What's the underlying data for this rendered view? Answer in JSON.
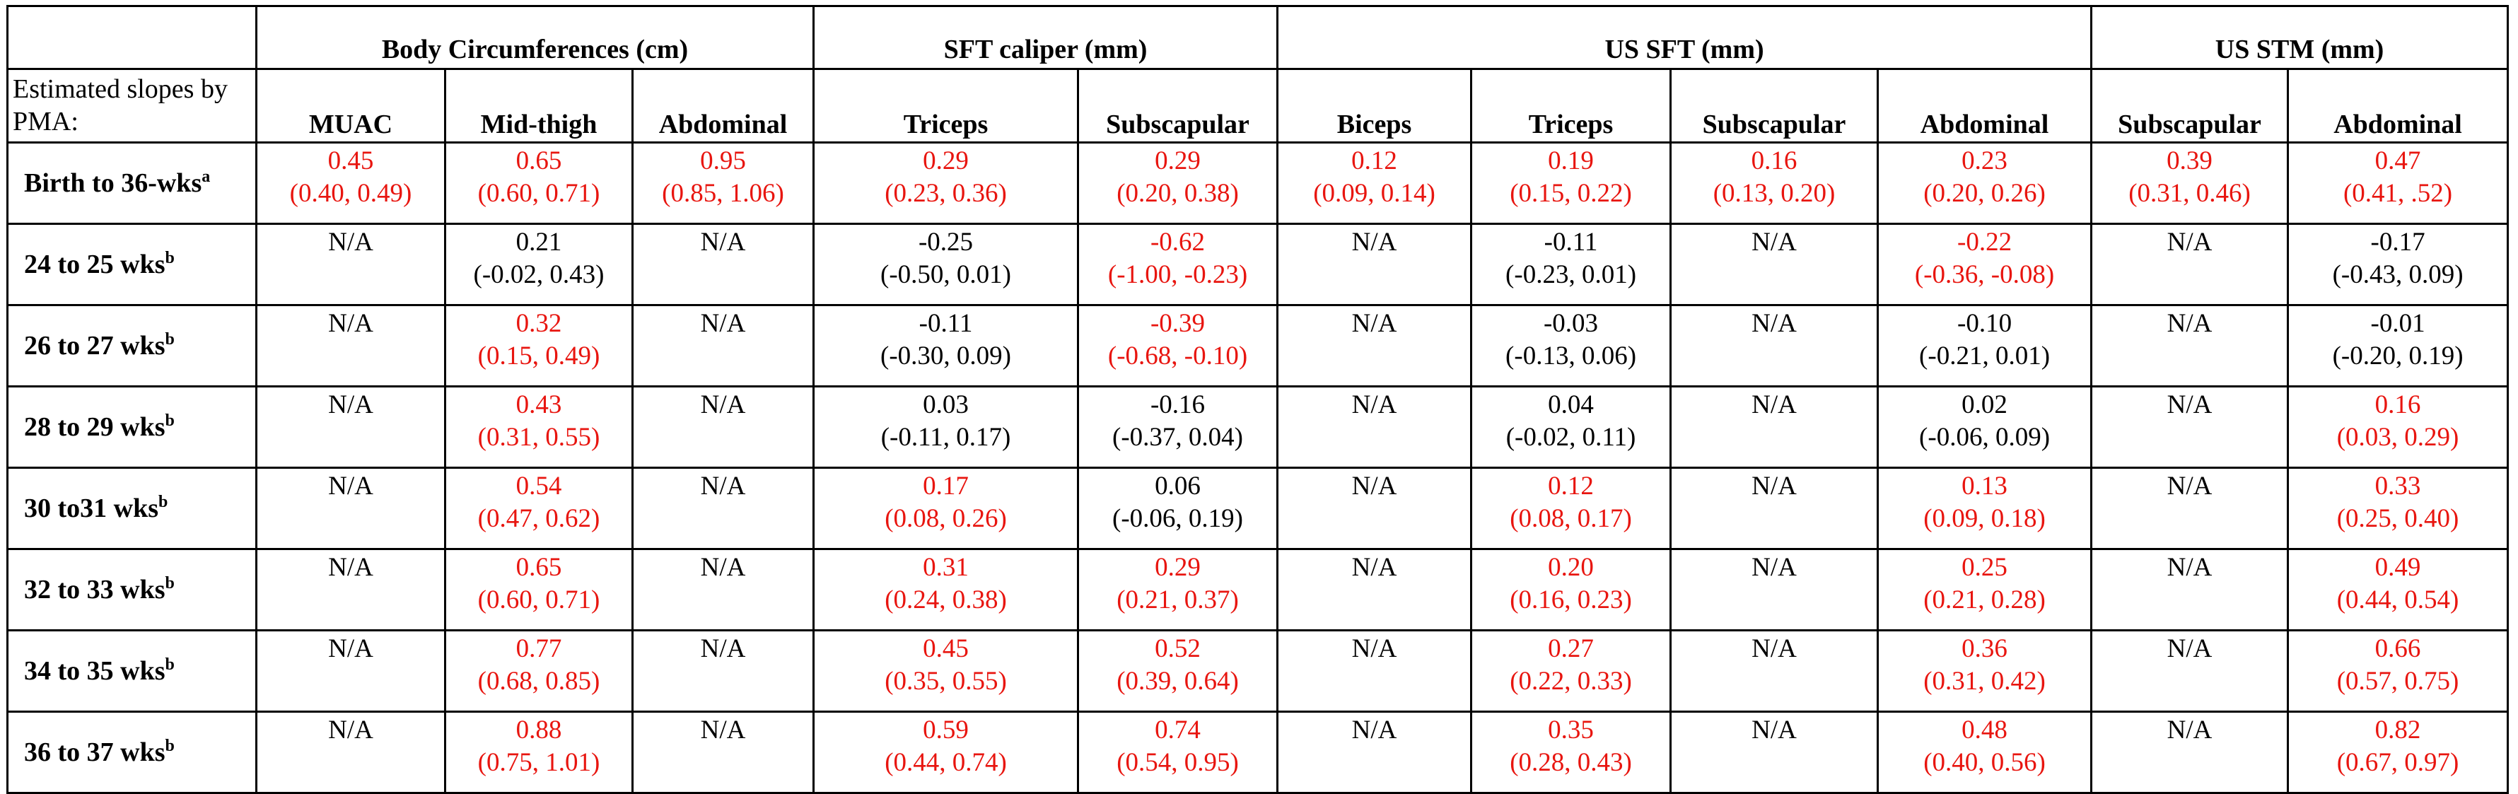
{
  "colors": {
    "significant": "#e8150f",
    "default": "#000000",
    "border": "#000000"
  },
  "table": {
    "corner_label": "Estimated slopes by PMA:",
    "groups": [
      {
        "label": "Body Circumferences (cm)",
        "span": 3
      },
      {
        "label": "SFT caliper (mm)",
        "span": 2
      },
      {
        "label": "US SFT (mm)",
        "span": 4
      },
      {
        "label": "US STM (mm)",
        "span": 2
      }
    ],
    "columns": [
      "MUAC",
      "Mid-thigh",
      "Abdominal",
      "Triceps",
      "Subscapular",
      "Biceps",
      "Triceps",
      "Subscapular",
      "Abdominal",
      "Subscapular",
      "Abdominal"
    ],
    "rows": [
      {
        "label": "Birth to 36-wks",
        "sup": "a",
        "cells": [
          {
            "est": "0.45",
            "ci": "(0.40, 0.49)",
            "sig": true
          },
          {
            "est": "0.65",
            "ci": "(0.60, 0.71)",
            "sig": true
          },
          {
            "est": "0.95",
            "ci": "(0.85, 1.06)",
            "sig": true
          },
          {
            "est": "0.29",
            "ci": "(0.23, 0.36)",
            "sig": true
          },
          {
            "est": "0.29",
            "ci": "(0.20, 0.38)",
            "sig": true
          },
          {
            "est": "0.12",
            "ci": "(0.09, 0.14)",
            "sig": true
          },
          {
            "est": "0.19",
            "ci": "(0.15, 0.22)",
            "sig": true
          },
          {
            "est": "0.16",
            "ci": "(0.13, 0.20)",
            "sig": true
          },
          {
            "est": "0.23",
            "ci": "(0.20, 0.26)",
            "sig": true
          },
          {
            "est": "0.39",
            "ci": "(0.31, 0.46)",
            "sig": true
          },
          {
            "est": "0.47",
            "ci": "(0.41, .52)",
            "sig": true
          }
        ]
      },
      {
        "label": "24 to 25 wks",
        "sup": "b",
        "cells": [
          {
            "est": "N/A",
            "ci": "",
            "sig": false
          },
          {
            "est": "0.21",
            "ci": "(-0.02, 0.43)",
            "sig": false
          },
          {
            "est": "N/A",
            "ci": "",
            "sig": false
          },
          {
            "est": "-0.25",
            "ci": "(-0.50, 0.01)",
            "sig": false
          },
          {
            "est": "-0.62",
            "ci": "(-1.00, -0.23)",
            "sig": true
          },
          {
            "est": "N/A",
            "ci": "",
            "sig": false
          },
          {
            "est": "-0.11",
            "ci": "(-0.23, 0.01)",
            "sig": false
          },
          {
            "est": "N/A",
            "ci": "",
            "sig": false
          },
          {
            "est": "-0.22",
            "ci": "(-0.36, -0.08)",
            "sig": true
          },
          {
            "est": "N/A",
            "ci": "",
            "sig": false
          },
          {
            "est": "-0.17",
            "ci": "(-0.43, 0.09)",
            "sig": false
          }
        ]
      },
      {
        "label": "26 to 27 wks",
        "sup": "b",
        "cells": [
          {
            "est": "N/A",
            "ci": "",
            "sig": false
          },
          {
            "est": "0.32",
            "ci": "(0.15, 0.49)",
            "sig": true
          },
          {
            "est": "N/A",
            "ci": "",
            "sig": false
          },
          {
            "est": "-0.11",
            "ci": "(-0.30, 0.09)",
            "sig": false
          },
          {
            "est": "-0.39",
            "ci": "(-0.68, -0.10)",
            "sig": true
          },
          {
            "est": "N/A",
            "ci": "",
            "sig": false
          },
          {
            "est": "-0.03",
            "ci": "(-0.13, 0.06)",
            "sig": false
          },
          {
            "est": "N/A",
            "ci": "",
            "sig": false
          },
          {
            "est": "-0.10",
            "ci": "(-0.21, 0.01)",
            "sig": false
          },
          {
            "est": "N/A",
            "ci": "",
            "sig": false
          },
          {
            "est": "-0.01",
            "ci": "(-0.20, 0.19)",
            "sig": false
          }
        ]
      },
      {
        "label": "28 to 29 wks",
        "sup": "b",
        "cells": [
          {
            "est": "N/A",
            "ci": "",
            "sig": false
          },
          {
            "est": "0.43",
            "ci": "(0.31, 0.55)",
            "sig": true
          },
          {
            "est": "N/A",
            "ci": "",
            "sig": false
          },
          {
            "est": "0.03",
            "ci": "(-0.11, 0.17)",
            "sig": false
          },
          {
            "est": "-0.16",
            "ci": "(-0.37, 0.04)",
            "sig": false
          },
          {
            "est": "N/A",
            "ci": "",
            "sig": false
          },
          {
            "est": "0.04",
            "ci": "(-0.02, 0.11)",
            "sig": false
          },
          {
            "est": "N/A",
            "ci": "",
            "sig": false
          },
          {
            "est": "0.02",
            "ci": "(-0.06, 0.09)",
            "sig": false
          },
          {
            "est": "N/A",
            "ci": "",
            "sig": false
          },
          {
            "est": "0.16",
            "ci": "(0.03, 0.29)",
            "sig": true
          }
        ]
      },
      {
        "label": "30 to31 wks",
        "sup": "b",
        "cells": [
          {
            "est": "N/A",
            "ci": "",
            "sig": false
          },
          {
            "est": "0.54",
            "ci": "(0.47, 0.62)",
            "sig": true
          },
          {
            "est": "N/A",
            "ci": "",
            "sig": false
          },
          {
            "est": "0.17",
            "ci": "(0.08, 0.26)",
            "sig": true
          },
          {
            "est": "0.06",
            "ci": "(-0.06, 0.19)",
            "sig": false
          },
          {
            "est": "N/A",
            "ci": "",
            "sig": false
          },
          {
            "est": "0.12",
            "ci": "(0.08, 0.17)",
            "sig": true
          },
          {
            "est": "N/A",
            "ci": "",
            "sig": false
          },
          {
            "est": "0.13",
            "ci": "(0.09, 0.18)",
            "sig": true
          },
          {
            "est": "N/A",
            "ci": "",
            "sig": false
          },
          {
            "est": "0.33",
            "ci": "(0.25, 0.40)",
            "sig": true
          }
        ]
      },
      {
        "label": "32 to 33 wks",
        "sup": "b",
        "cells": [
          {
            "est": "N/A",
            "ci": "",
            "sig": false
          },
          {
            "est": "0.65",
            "ci": "(0.60, 0.71)",
            "sig": true
          },
          {
            "est": "N/A",
            "ci": "",
            "sig": false
          },
          {
            "est": "0.31",
            "ci": "(0.24, 0.38)",
            "sig": true
          },
          {
            "est": "0.29",
            "ci": "(0.21, 0.37)",
            "sig": true
          },
          {
            "est": "N/A",
            "ci": "",
            "sig": false
          },
          {
            "est": "0.20",
            "ci": "(0.16, 0.23)",
            "sig": true
          },
          {
            "est": "N/A",
            "ci": "",
            "sig": false
          },
          {
            "est": "0.25",
            "ci": "(0.21, 0.28)",
            "sig": true
          },
          {
            "est": "N/A",
            "ci": "",
            "sig": false
          },
          {
            "est": "0.49",
            "ci": "(0.44, 0.54)",
            "sig": true
          }
        ]
      },
      {
        "label": "34 to 35 wks",
        "sup": "b",
        "cells": [
          {
            "est": "N/A",
            "ci": "",
            "sig": false
          },
          {
            "est": "0.77",
            "ci": "(0.68, 0.85)",
            "sig": true
          },
          {
            "est": "N/A",
            "ci": "",
            "sig": false
          },
          {
            "est": "0.45",
            "ci": "(0.35, 0.55)",
            "sig": true
          },
          {
            "est": "0.52",
            "ci": "(0.39, 0.64)",
            "sig": true
          },
          {
            "est": "N/A",
            "ci": "",
            "sig": false
          },
          {
            "est": "0.27",
            "ci": "(0.22, 0.33)",
            "sig": true
          },
          {
            "est": "N/A",
            "ci": "",
            "sig": false
          },
          {
            "est": "0.36",
            "ci": "(0.31, 0.42)",
            "sig": true
          },
          {
            "est": "N/A",
            "ci": "",
            "sig": false
          },
          {
            "est": "0.66",
            "ci": "(0.57, 0.75)",
            "sig": true
          }
        ]
      },
      {
        "label": "36 to 37 wks",
        "sup": "b",
        "cells": [
          {
            "est": "N/A",
            "ci": "",
            "sig": false
          },
          {
            "est": "0.88",
            "ci": "(0.75, 1.01)",
            "sig": true
          },
          {
            "est": "N/A",
            "ci": "",
            "sig": false
          },
          {
            "est": "0.59",
            "ci": "(0.44, 0.74)",
            "sig": true
          },
          {
            "est": "0.74",
            "ci": "(0.54, 0.95)",
            "sig": true
          },
          {
            "est": "N/A",
            "ci": "",
            "sig": false
          },
          {
            "est": "0.35",
            "ci": "(0.28, 0.43)",
            "sig": true
          },
          {
            "est": "N/A",
            "ci": "",
            "sig": false
          },
          {
            "est": "0.48",
            "ci": "(0.40, 0.56)",
            "sig": true
          },
          {
            "est": "N/A",
            "ci": "",
            "sig": false
          },
          {
            "est": "0.82",
            "ci": "(0.67, 0.97)",
            "sig": true
          }
        ]
      }
    ]
  }
}
